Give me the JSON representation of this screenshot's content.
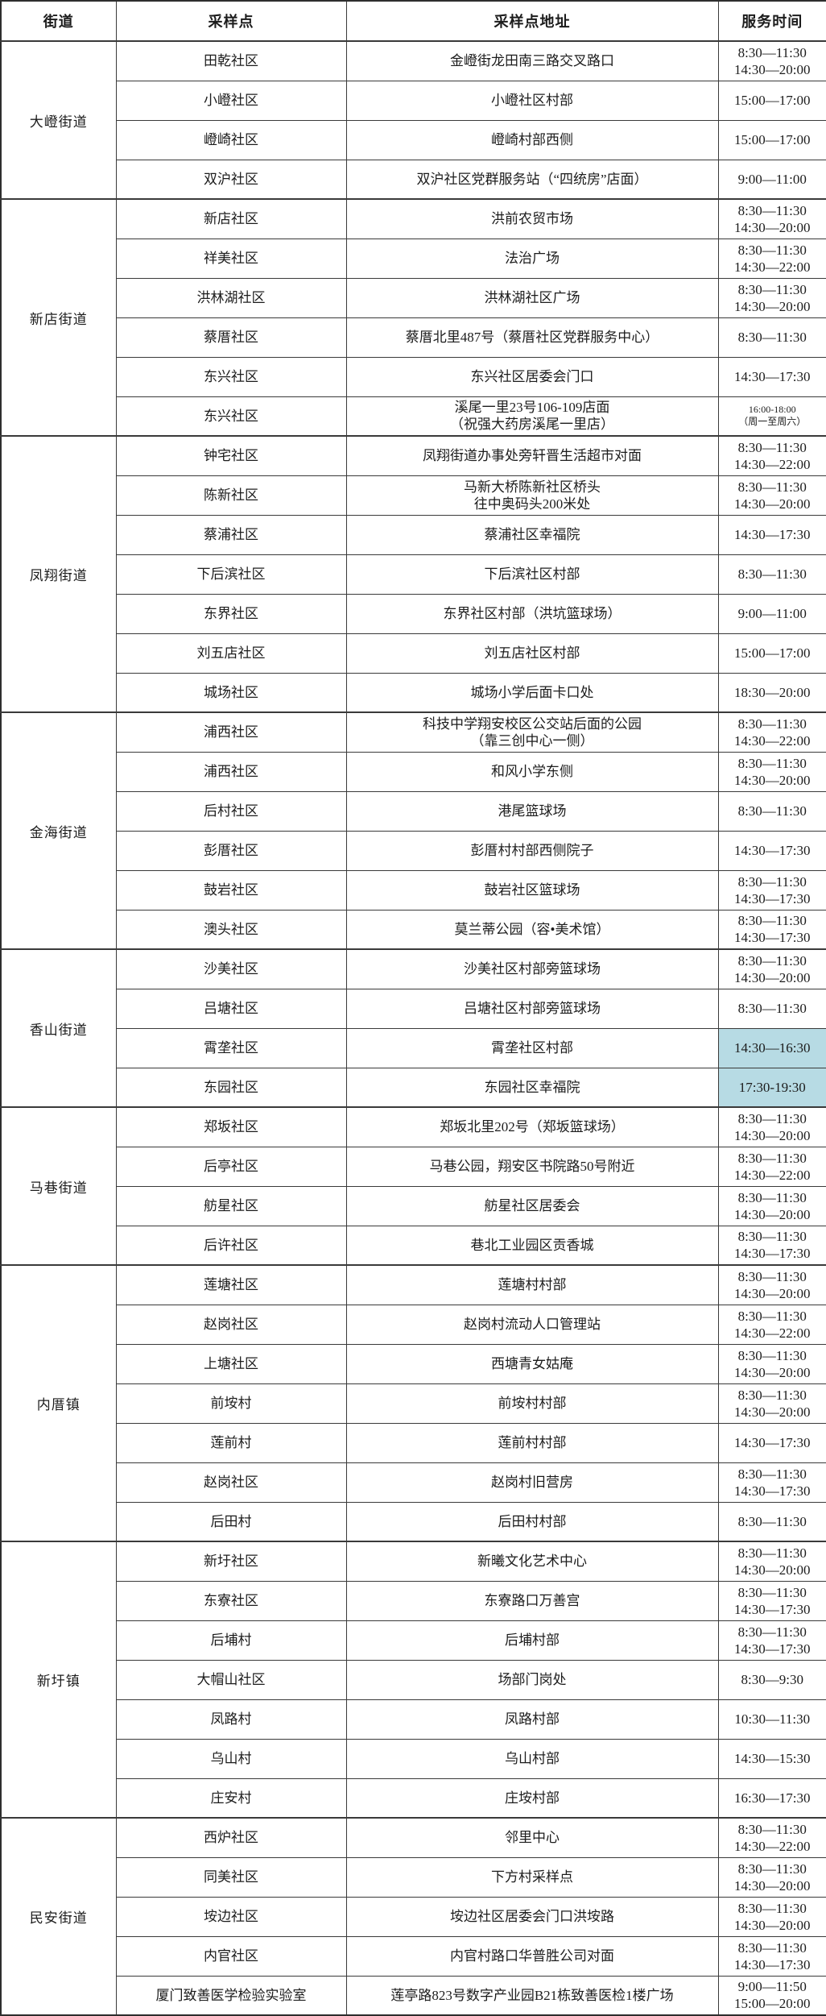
{
  "colors": {
    "highlight": "#b7dbe4",
    "border": "#3a3a3a",
    "text": "#1c1c1c",
    "background": "#ffffff"
  },
  "header": {
    "columns": [
      "街道",
      "采样点",
      "采样点地址",
      "服务时间"
    ]
  },
  "groups": [
    {
      "street": "大嶝街道",
      "rows": [
        {
          "site": "田乾社区",
          "address": [
            "金嶝街龙田南三路交叉路口"
          ],
          "time": [
            "8:30—11:30",
            "14:30—20:00"
          ]
        },
        {
          "site": "小嶝社区",
          "address": [
            "小嶝社区村部"
          ],
          "time": [
            "15:00—17:00"
          ]
        },
        {
          "site": "嶝崎社区",
          "address": [
            "嶝崎村部西侧"
          ],
          "time": [
            "15:00—17:00"
          ]
        },
        {
          "site": "双沪社区",
          "address": [
            "双沪社区党群服务站（“四统房”店面）"
          ],
          "time": [
            "9:00—11:00"
          ]
        }
      ]
    },
    {
      "street": "新店街道",
      "rows": [
        {
          "site": "新店社区",
          "address": [
            "洪前农贸市场"
          ],
          "time": [
            "8:30—11:30",
            "14:30—20:00"
          ]
        },
        {
          "site": "祥美社区",
          "address": [
            "法治广场"
          ],
          "time": [
            "8:30—11:30",
            "14:30—22:00"
          ]
        },
        {
          "site": "洪林湖社区",
          "address": [
            "洪林湖社区广场"
          ],
          "time": [
            "8:30—11:30",
            "14:30—20:00"
          ]
        },
        {
          "site": "蔡厝社区",
          "address": [
            "蔡厝北里487号（蔡厝社区党群服务中心）"
          ],
          "time": [
            "8:30—11:30"
          ]
        },
        {
          "site": "东兴社区",
          "address": [
            "东兴社区居委会门口"
          ],
          "time": [
            "14:30—17:30"
          ]
        },
        {
          "site": "东兴社区",
          "address": [
            "溪尾一里23号106-109店面",
            "（祝强大药房溪尾一里店）"
          ],
          "time": [
            "16:00-18:00",
            "（周一至周六）"
          ],
          "small_time": true
        }
      ]
    },
    {
      "street": "凤翔街道",
      "rows": [
        {
          "site": "钟宅社区",
          "address": [
            "凤翔街道办事处旁轩晋生活超市对面"
          ],
          "time": [
            "8:30—11:30",
            "14:30—22:00"
          ]
        },
        {
          "site": "陈新社区",
          "address": [
            "马新大桥陈新社区桥头",
            "往中奥码头200米处"
          ],
          "time": [
            "8:30—11:30",
            "14:30—20:00"
          ]
        },
        {
          "site": "蔡浦社区",
          "address": [
            "蔡浦社区幸福院"
          ],
          "time": [
            "14:30—17:30"
          ]
        },
        {
          "site": "下后滨社区",
          "address": [
            "下后滨社区村部"
          ],
          "time": [
            "8:30—11:30"
          ]
        },
        {
          "site": "东界社区",
          "address": [
            "东界社区村部（洪坑篮球场）"
          ],
          "time": [
            "9:00—11:00"
          ]
        },
        {
          "site": "刘五店社区",
          "address": [
            "刘五店社区村部"
          ],
          "time": [
            "15:00—17:00"
          ]
        },
        {
          "site": "城场社区",
          "address": [
            "城场小学后面卡口处"
          ],
          "time": [
            "18:30—20:00"
          ]
        }
      ]
    },
    {
      "street": "金海街道",
      "rows": [
        {
          "site": "浦西社区",
          "address": [
            "科技中学翔安校区公交站后面的公园",
            "（靠三创中心一侧）"
          ],
          "time": [
            "8:30—11:30",
            "14:30—22:00"
          ]
        },
        {
          "site": "浦西社区",
          "address": [
            "和风小学东侧"
          ],
          "time": [
            "8:30—11:30",
            "14:30—20:00"
          ]
        },
        {
          "site": "后村社区",
          "address": [
            "港尾篮球场"
          ],
          "time": [
            "8:30—11:30"
          ]
        },
        {
          "site": "彭厝社区",
          "address": [
            "彭厝村村部西侧院子"
          ],
          "time": [
            "14:30—17:30"
          ]
        },
        {
          "site": "鼓岩社区",
          "address": [
            "鼓岩社区篮球场"
          ],
          "time": [
            "8:30—11:30",
            "14:30—17:30"
          ]
        },
        {
          "site": "澳头社区",
          "address": [
            "莫兰蒂公园（容•美术馆）"
          ],
          "time": [
            "8:30—11:30",
            "14:30—17:30"
          ]
        }
      ]
    },
    {
      "street": "香山街道",
      "rows": [
        {
          "site": "沙美社区",
          "address": [
            "沙美社区村部旁篮球场"
          ],
          "time": [
            "8:30—11:30",
            "14:30—20:00"
          ]
        },
        {
          "site": "吕塘社区",
          "address": [
            "吕塘社区村部旁篮球场"
          ],
          "time": [
            "8:30—11:30"
          ]
        },
        {
          "site": "霄垄社区",
          "address": [
            "霄垄社区村部"
          ],
          "time": [
            "14:30—16:30"
          ],
          "highlight": true
        },
        {
          "site": "东园社区",
          "address": [
            "东园社区幸福院"
          ],
          "time": [
            "17:30-19:30"
          ],
          "highlight": true
        }
      ]
    },
    {
      "street": "马巷街道",
      "rows": [
        {
          "site": "郑坂社区",
          "address": [
            "郑坂北里202号（郑坂篮球场）"
          ],
          "time": [
            "8:30—11:30",
            "14:30—20:00"
          ]
        },
        {
          "site": "后亭社区",
          "address": [
            "马巷公园，翔安区书院路50号附近"
          ],
          "time": [
            "8:30—11:30",
            "14:30—22:00"
          ]
        },
        {
          "site": "舫星社区",
          "address": [
            "舫星社区居委会"
          ],
          "time": [
            "8:30—11:30",
            "14:30—20:00"
          ]
        },
        {
          "site": "后许社区",
          "address": [
            "巷北工业园区贡香城"
          ],
          "time": [
            "8:30—11:30",
            "14:30—17:30"
          ]
        }
      ]
    },
    {
      "street": "内厝镇",
      "rows": [
        {
          "site": "莲塘社区",
          "address": [
            "莲塘村村部"
          ],
          "time": [
            "8:30—11:30",
            "14:30—20:00"
          ]
        },
        {
          "site": "赵岗社区",
          "address": [
            "赵岗村流动人口管理站"
          ],
          "time": [
            "8:30—11:30",
            "14:30—22:00"
          ]
        },
        {
          "site": "上塘社区",
          "address": [
            "西塘青女姑庵"
          ],
          "time": [
            "8:30—11:30",
            "14:30—20:00"
          ]
        },
        {
          "site": "前垵村",
          "address": [
            "前垵村村部"
          ],
          "time": [
            "8:30—11:30",
            "14:30—20:00"
          ]
        },
        {
          "site": "莲前村",
          "address": [
            "莲前村村部"
          ],
          "time": [
            "14:30—17:30"
          ]
        },
        {
          "site": "赵岗社区",
          "address": [
            "赵岗村旧营房"
          ],
          "time": [
            "8:30—11:30",
            "14:30—17:30"
          ]
        },
        {
          "site": "后田村",
          "address": [
            "后田村村部"
          ],
          "time": [
            "8:30—11:30"
          ]
        }
      ]
    },
    {
      "street": "新圩镇",
      "rows": [
        {
          "site": "新圩社区",
          "address": [
            "新曦文化艺术中心"
          ],
          "time": [
            "8:30—11:30",
            "14:30—20:00"
          ]
        },
        {
          "site": "东寮社区",
          "address": [
            "东寮路口万善宫"
          ],
          "time": [
            "8:30—11:30",
            "14:30—17:30"
          ]
        },
        {
          "site": "后埔村",
          "address": [
            "后埔村部"
          ],
          "time": [
            "8:30—11:30",
            "14:30—17:30"
          ]
        },
        {
          "site": "大帽山社区",
          "address": [
            "场部门岗处"
          ],
          "time": [
            "8:30—9:30"
          ]
        },
        {
          "site": "凤路村",
          "address": [
            "凤路村部"
          ],
          "time": [
            "10:30—11:30"
          ]
        },
        {
          "site": "乌山村",
          "address": [
            "乌山村部"
          ],
          "time": [
            "14:30—15:30"
          ]
        },
        {
          "site": "庄安村",
          "address": [
            "庄垵村部"
          ],
          "time": [
            "16:30—17:30"
          ]
        }
      ]
    },
    {
      "street": "民安街道",
      "rows": [
        {
          "site": "西炉社区",
          "address": [
            "邻里中心"
          ],
          "time": [
            "8:30—11:30",
            "14:30—22:00"
          ]
        },
        {
          "site": "同美社区",
          "address": [
            "下方村采样点"
          ],
          "time": [
            "8:30—11:30",
            "14:30—20:00"
          ]
        },
        {
          "site": "垵边社区",
          "address": [
            "垵边社区居委会门口洪垵路"
          ],
          "time": [
            "8:30—11:30",
            "14:30—20:00"
          ]
        },
        {
          "site": "内官社区",
          "address": [
            "内官村路口华普胜公司对面"
          ],
          "time": [
            "8:30—11:30",
            "14:30—17:30"
          ]
        },
        {
          "site": "厦门致善医学检验实验室",
          "address": [
            "莲亭路823号数字产业园B21栋致善医检1楼广场"
          ],
          "time": [
            "9:00—11:50",
            "15:00—20:00"
          ]
        }
      ]
    }
  ]
}
